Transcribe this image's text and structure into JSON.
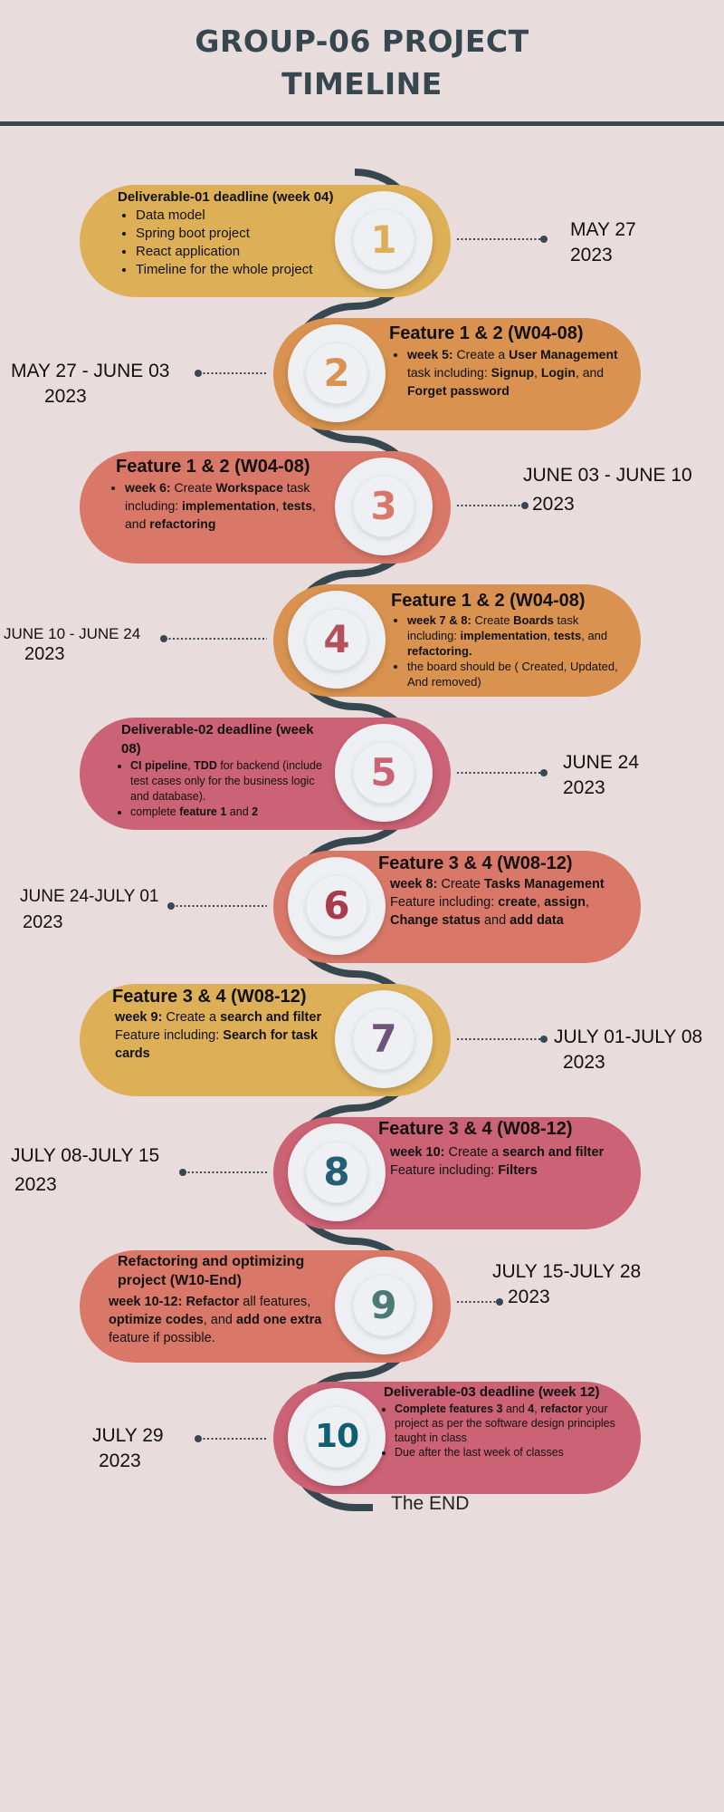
{
  "title_line1": "GROUP-06 PROJECT",
  "title_line2": "TIMELINE",
  "colors": {
    "background": "#e8dcdc",
    "track": "#37474f",
    "gold": "#ddb058",
    "orange": "#d99250",
    "coral": "#d97868",
    "rose": "#cc6275"
  },
  "steps": [
    {
      "number": "1",
      "heading": "Deliverable-01 deadline (week 04)",
      "bullets": [
        "Data model",
        "Spring boot project",
        "React application",
        "Timeline for the whole project"
      ],
      "date_line1": "MAY 27",
      "date_line2": "2023"
    },
    {
      "number": "2",
      "heading": "Feature 1 & 2 (W04-08)",
      "b1_a": "week 5:",
      "b1_b": " Create a ",
      "b1_c": "User Management",
      "b1_d": " task including: ",
      "b1_e": "Signup",
      "b1_f": ", ",
      "b1_g": "Login",
      "b1_h": ", and ",
      "b1_i": "Forget password",
      "date_line1": "MAY 27 - JUNE 03",
      "date_line2": "2023"
    },
    {
      "number": "3",
      "heading": "Feature 1 & 2 (W04-08)",
      "b1_a": "week 6:",
      "b1_b": " Create ",
      "b1_c": "Workspace",
      "b1_d": " task including: ",
      "b1_e": "implementation",
      "b1_f": ", ",
      "b1_g": "tests",
      "b1_h": ", and ",
      "b1_i": "refactoring",
      "date_line1": "JUNE 03 - JUNE 10",
      "date_line2": "2023"
    },
    {
      "number": "4",
      "heading": "Feature 1 & 2 (W04-08)",
      "b1_a": "week 7 & 8:",
      "b1_b": " Create ",
      "b1_c": "Boards",
      "b1_d": " task including: ",
      "b1_e": "implementation",
      "b1_f": ", ",
      "b1_g": "tests",
      "b1_h": ", and ",
      "b1_i": "refactoring.",
      "b2": "the board should be ( Created, Updated, And removed)",
      "date_line1": "JUNE 10 - JUNE 24",
      "date_line2": "2023"
    },
    {
      "number": "5",
      "heading": "Deliverable-02 deadline (week 08)",
      "b1_a": "CI pipeline",
      "b1_b": ", ",
      "b1_c": "TDD",
      "b1_d": " for backend (include test cases only for the business logic and database).",
      "b2_a": "complete ",
      "b2_b": "feature 1",
      "b2_c": " and ",
      "b2_d": "2",
      "date_line1": "JUNE 24",
      "date_line2": "2023"
    },
    {
      "number": "6",
      "heading": "Feature 3 & 4 (W08-12)",
      "l1_a": "week 8:",
      "l1_b": " Create ",
      "l1_c": "Tasks Management",
      "l2_a": "Feature including: ",
      "l2_b": "create",
      "l2_c": ", ",
      "l2_d": "assign",
      "l2_e": ",",
      "l3_a": "Change status",
      "l3_b": " and ",
      "l3_c": "add data",
      "date_line1": "JUNE 24-JULY 01",
      "date_line2": "2023"
    },
    {
      "number": "7",
      "heading": "Feature 3 & 4 (W08-12)",
      "p_a": "week 9:",
      "p_b": " Create a ",
      "p_c": "search and filter",
      "p_d": " Feature including: ",
      "p_e": "Search for task cards",
      "date_line1": "JULY 01-JULY 08",
      "date_line2": "2023"
    },
    {
      "number": "8",
      "heading": "Feature 3 & 4 (W08-12)",
      "p_a": "week 10:",
      "p_b": " Create a ",
      "p_c": "search and filter",
      "p_d": " Feature including: ",
      "p_e": "Filters",
      "date_line1": "JULY 08-JULY 15",
      "date_line2": "2023"
    },
    {
      "number": "9",
      "heading": "Refactoring and optimizing project (W10-End)",
      "p_a": "week 10-12:",
      "p_b": " ",
      "p_c": "Refactor",
      "p_d": " all features, ",
      "p_e": "optimize codes",
      "p_f": ", and ",
      "p_g": "add one extra",
      "p_h": " feature if possible.",
      "date_line1": "JULY 15-JULY 28",
      "date_line2": "2023"
    },
    {
      "number": "10",
      "heading": "Deliverable-03 deadline (week 12)",
      "b1_a": "Complete features 3",
      "b1_b": " and ",
      "b1_c": "4",
      "b1_d": ", ",
      "b1_e": "refactor",
      "b1_f": " your project as per the software design principles taught in class",
      "b2": "Due after the last week of classes",
      "date_line1": "JULY 29",
      "date_line2": "2023"
    }
  ],
  "end_label": "The END"
}
